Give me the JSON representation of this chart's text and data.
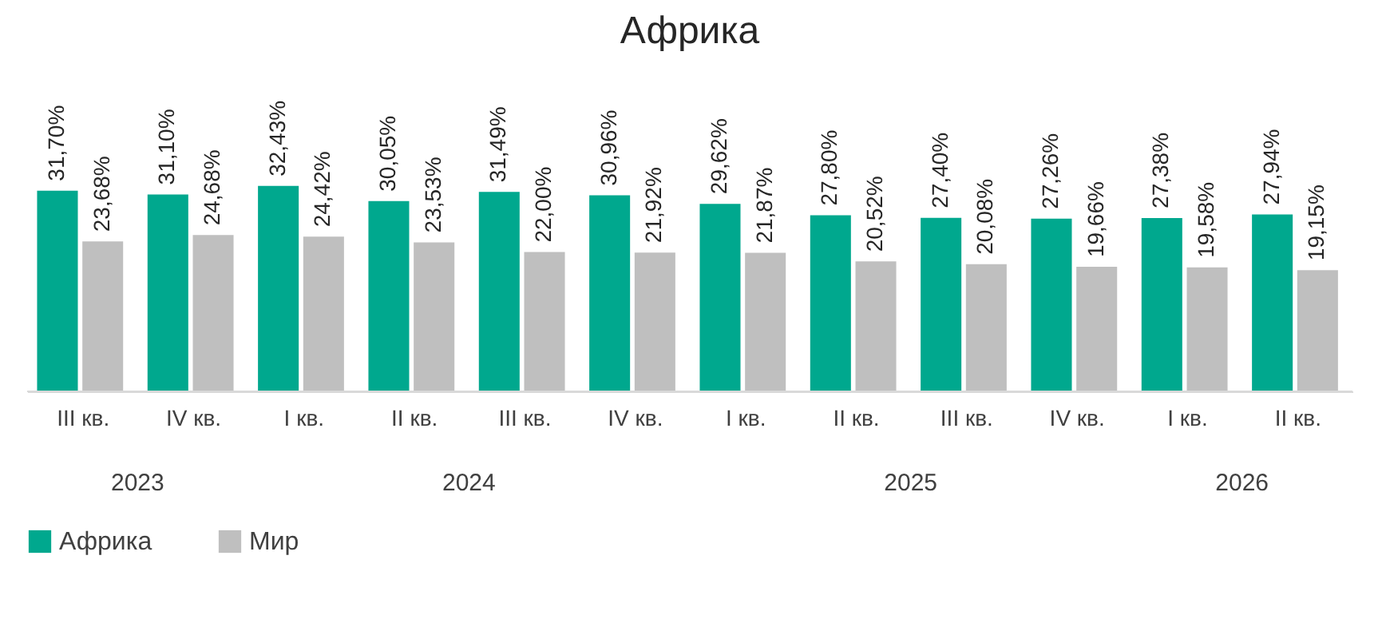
{
  "chart_data": {
    "type": "bar",
    "title": "Африка",
    "categories": [
      "III кв.",
      "IV кв.",
      "I кв.",
      "II кв.",
      "III кв.",
      "IV кв.",
      "I кв.",
      "II кв.",
      "III кв.",
      "IV кв.",
      "I кв.",
      "II кв."
    ],
    "series": [
      {
        "name": "Африка",
        "color": "#00a88e",
        "values": [
          31.7,
          31.1,
          32.43,
          30.05,
          31.49,
          30.96,
          29.62,
          27.8,
          27.4,
          27.26,
          27.38,
          27.94
        ],
        "value_labels": [
          "31,70%",
          "31,10%",
          "32,43%",
          "30,05%",
          "31,49%",
          "30,96%",
          "29,62%",
          "27,80%",
          "27,40%",
          "27,26%",
          "27,38%",
          "27,94%"
        ]
      },
      {
        "name": "Мир",
        "color": "#bfbfbf",
        "values": [
          23.68,
          24.68,
          24.42,
          23.53,
          22.0,
          21.92,
          21.87,
          20.52,
          20.08,
          19.66,
          19.58,
          19.15
        ],
        "value_labels": [
          "23,68%",
          "24,68%",
          "24,42%",
          "23,53%",
          "22,00%",
          "21,92%",
          "21,87%",
          "20,52%",
          "20,08%",
          "19,66%",
          "19,58%",
          "19,15%"
        ]
      }
    ],
    "annotations": [
      "2023",
      "2024",
      "2025",
      "2026"
    ],
    "legend": "bottom",
    "grid": false
  }
}
